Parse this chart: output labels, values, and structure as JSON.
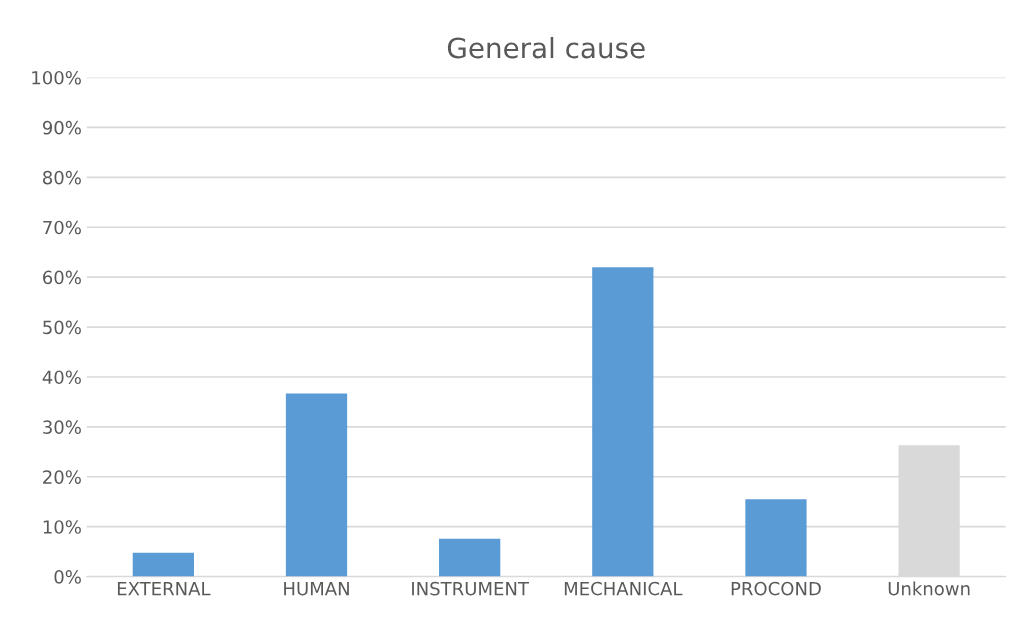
{
  "chart_data": {
    "type": "bar",
    "title": "General cause",
    "categories": [
      "EXTERNAL",
      "HUMAN",
      "INSTRUMENT",
      "MECHANICAL",
      "PROCOND",
      "Unknown"
    ],
    "values": [
      4.8,
      36.7,
      7.6,
      62.0,
      15.5,
      26.3
    ],
    "colors": [
      "#5b9bd5",
      "#5b9bd5",
      "#5b9bd5",
      "#5b9bd5",
      "#5b9bd5",
      "#d9d9d9"
    ],
    "ylim": [
      0,
      100
    ],
    "yticks": [
      {
        "value": 0,
        "label": "0%"
      },
      {
        "value": 10,
        "label": "10%"
      },
      {
        "value": 20,
        "label": "20%"
      },
      {
        "value": 30,
        "label": "30%"
      },
      {
        "value": 40,
        "label": "40%"
      },
      {
        "value": 50,
        "label": "50%"
      },
      {
        "value": 60,
        "label": "60%"
      },
      {
        "value": 70,
        "label": "70%"
      },
      {
        "value": 80,
        "label": "80%"
      },
      {
        "value": 90,
        "label": "90%"
      },
      {
        "value": 100,
        "label": "100%"
      }
    ],
    "grid": "y"
  }
}
